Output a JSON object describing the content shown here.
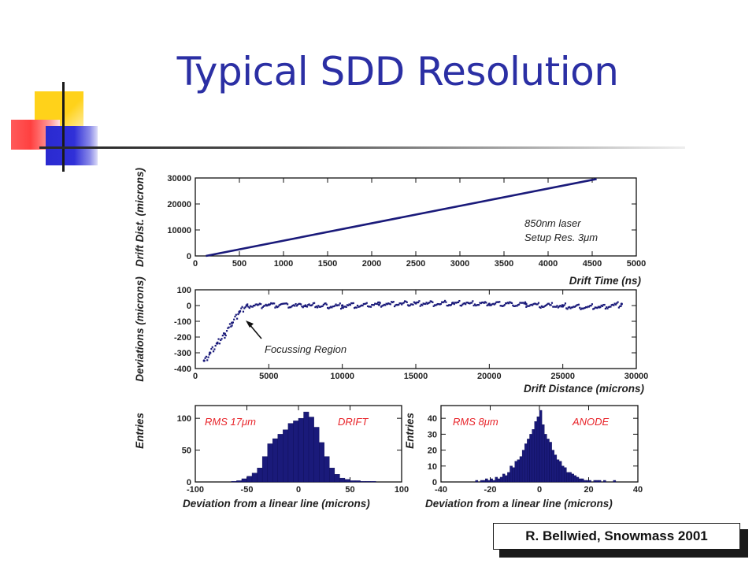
{
  "title": "Typical SDD Resolution",
  "credit": "R. Bellwied, Snowmass 2001",
  "colors": {
    "title": "#2b2fa4",
    "data": "#1a1a7a",
    "annotation_red": "#e8242a"
  },
  "chart_data": [
    {
      "type": "line",
      "xlabel": "Drift Time (ns)",
      "ylabel": "Drift Dist. (microns)",
      "xlim": [
        0,
        5000
      ],
      "ylim": [
        0,
        30000
      ],
      "xticks": [
        0,
        500,
        1000,
        1500,
        2000,
        2500,
        3000,
        3500,
        4000,
        4500,
        5000
      ],
      "yticks": [
        0,
        10000,
        20000,
        30000
      ],
      "x": [
        120,
        4550
      ],
      "y": [
        0,
        29600
      ],
      "annotation_lines": [
        "850nm laser",
        "Setup Res. 3μm"
      ]
    },
    {
      "type": "scatter",
      "xlabel": "Drift Distance (microns)",
      "ylabel": "Deviations  (microns)",
      "xlim": [
        0,
        30000
      ],
      "ylim": [
        -400,
        100
      ],
      "xticks": [
        0,
        5000,
        10000,
        15000,
        20000,
        25000,
        30000
      ],
      "yticks": [
        100,
        0,
        -100,
        -200,
        -300,
        -400
      ],
      "x": [
        600,
        1000,
        1500,
        2000,
        2500,
        3000,
        3500,
        5000,
        7500,
        10000,
        12500,
        15000,
        17500,
        20000,
        22500,
        25000,
        27500,
        29000
      ],
      "y": [
        -350,
        -300,
        -240,
        -180,
        -110,
        -40,
        0,
        5,
        0,
        0,
        5,
        15,
        15,
        10,
        10,
        -5,
        -10,
        10
      ],
      "annotation": "Focussing Region"
    },
    {
      "type": "bar",
      "xlabel": "Deviation from a linear line (microns)",
      "ylabel": "Entries",
      "xlim": [
        -100,
        100
      ],
      "ylim": [
        0,
        120
      ],
      "xticks": [
        -100,
        -50,
        0,
        50,
        100
      ],
      "yticks": [
        0,
        50,
        100
      ],
      "bin_width": 5,
      "bin_centers": [
        -62.5,
        -57.5,
        -52.5,
        -47.5,
        -42.5,
        -37.5,
        -32.5,
        -27.5,
        -22.5,
        -17.5,
        -12.5,
        -7.5,
        -2.5,
        2.5,
        7.5,
        12.5,
        17.5,
        22.5,
        27.5,
        32.5,
        37.5,
        42.5,
        47.5,
        52.5,
        57.5,
        62.5,
        67.5,
        72.5
      ],
      "values": [
        1,
        2,
        5,
        9,
        14,
        22,
        40,
        60,
        68,
        75,
        82,
        92,
        96,
        100,
        110,
        102,
        86,
        62,
        40,
        22,
        12,
        6,
        4,
        2,
        2,
        1,
        1,
        1
      ],
      "labels": {
        "rms": "RMS  17μm",
        "tag": "DRIFT"
      }
    },
    {
      "type": "bar",
      "xlabel": "Deviation from a linear line (microns)",
      "ylabel": "Entries",
      "xlim": [
        -40,
        40
      ],
      "ylim": [
        0,
        48
      ],
      "xticks": [
        -40,
        -20,
        0,
        20,
        40
      ],
      "yticks": [
        0,
        10,
        20,
        30,
        40
      ],
      "bin_width": 1,
      "bin_centers": [
        -25.5,
        -24.5,
        -23.5,
        -22.5,
        -21.5,
        -20.5,
        -19.5,
        -18.5,
        -17.5,
        -16.5,
        -15.5,
        -14.5,
        -13.5,
        -12.5,
        -11.5,
        -10.5,
        -9.5,
        -8.5,
        -7.5,
        -6.5,
        -5.5,
        -4.5,
        -3.5,
        -2.5,
        -1.5,
        -0.5,
        0.5,
        1.5,
        2.5,
        3.5,
        4.5,
        5.5,
        6.5,
        7.5,
        8.5,
        9.5,
        10.5,
        11.5,
        12.5,
        13.5,
        14.5,
        15.5,
        16.5,
        17.5,
        18.5,
        19.5,
        20.5,
        21.5,
        22.5,
        23.5,
        24.5,
        25.5,
        26.5,
        27.5,
        28.5,
        29.5,
        30.5
      ],
      "values": [
        1,
        0,
        1,
        1,
        2,
        1,
        2,
        1,
        3,
        2,
        3,
        5,
        4,
        6,
        10,
        9,
        13,
        14,
        16,
        20,
        24,
        27,
        30,
        33,
        38,
        41,
        45,
        36,
        30,
        27,
        25,
        20,
        17,
        14,
        13,
        10,
        9,
        6,
        6,
        5,
        4,
        3,
        2,
        2,
        1,
        1,
        1,
        0,
        1,
        1,
        1,
        0,
        1,
        0,
        0,
        0,
        1
      ],
      "labels": {
        "rms": "RMS  8μm",
        "tag": "ANODE"
      }
    }
  ]
}
